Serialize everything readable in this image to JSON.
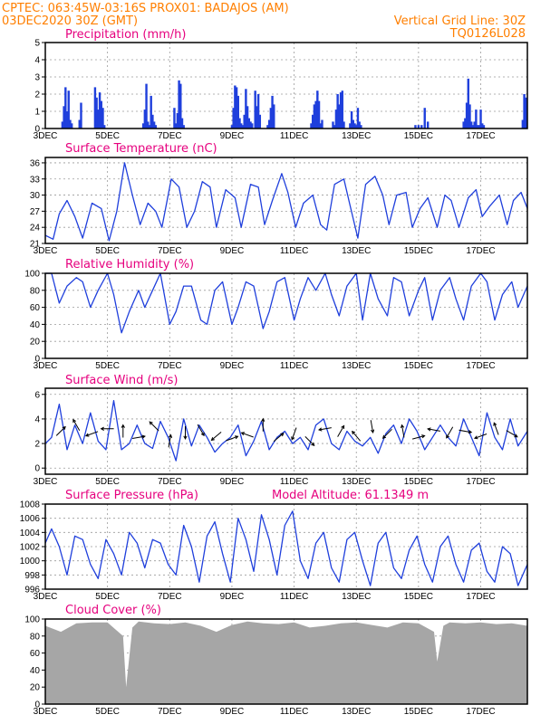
{
  "header": {
    "line1": "CPTEC:   063:45W-03:16S   PROX01: BADAJOS (AM)",
    "line2_left": "03DEC2020 30Z (GMT)",
    "line2_right": "Vertical Grid Line: 30Z",
    "line3_right": "TQ0126L028"
  },
  "colors": {
    "header": "#ff7f00",
    "panel_title": "#e6007e",
    "series": "#1f3fdc",
    "cloud": "#a6a6a6",
    "arrow": "#000000"
  },
  "x_axis": {
    "unit": "days from 03DEC 00Z",
    "range": [
      0,
      15.5
    ],
    "tick_positions": [
      0,
      2,
      4,
      6,
      8,
      10,
      12,
      14
    ],
    "tick_labels": [
      "3DEC",
      "5DEC",
      "7DEC",
      "9DEC",
      "11DEC",
      "13DEC",
      "15DEC",
      "17DEC"
    ]
  },
  "chart_data": [
    {
      "type": "bar",
      "panel": "precipitation",
      "title": "Precipitation (mm/h)",
      "ylim": [
        0,
        5
      ],
      "yticks": [
        0,
        1,
        2,
        3,
        4,
        5
      ],
      "grid": true,
      "x": [
        0.55,
        0.6,
        0.65,
        0.7,
        0.75,
        0.8,
        0.85,
        1.1,
        1.15,
        1.6,
        1.65,
        1.7,
        1.75,
        1.8,
        1.85,
        1.9,
        3.15,
        3.2,
        3.25,
        3.3,
        3.35,
        3.4,
        3.45,
        3.5,
        3.55,
        4.15,
        4.2,
        4.25,
        4.3,
        4.35,
        4.4,
        4.45,
        6.0,
        6.05,
        6.1,
        6.15,
        6.2,
        6.25,
        6.3,
        6.35,
        6.4,
        6.45,
        6.5,
        6.55,
        6.6,
        6.65,
        6.75,
        6.8,
        6.85,
        6.9,
        7.15,
        7.2,
        7.25,
        7.3,
        7.35,
        8.55,
        8.6,
        8.65,
        8.7,
        8.75,
        8.8,
        8.85,
        8.9,
        9.25,
        9.3,
        9.35,
        9.4,
        9.45,
        9.5,
        9.55,
        9.6,
        9.8,
        9.85,
        9.9,
        9.95,
        10.0,
        10.05,
        10.1,
        10.15,
        11.9,
        12.0,
        12.1,
        12.2,
        12.3,
        13.45,
        13.5,
        13.55,
        13.6,
        13.65,
        13.7,
        13.75,
        13.8,
        13.85,
        13.9,
        13.95,
        14.0,
        14.05,
        14.1,
        15.35,
        15.4,
        15.45
      ],
      "values": [
        0.4,
        1.3,
        2.4,
        1.0,
        2.2,
        0.5,
        0.3,
        0.5,
        1.5,
        2.4,
        1.8,
        1.1,
        2.1,
        1.6,
        1.2,
        0.2,
        0.3,
        1.1,
        2.6,
        0.4,
        0.2,
        1.9,
        0.8,
        0.4,
        0.2,
        1.2,
        0.3,
        0.9,
        2.8,
        2.6,
        0.6,
        0.2,
        0.2,
        1.2,
        2.5,
        2.4,
        1.9,
        0.6,
        0.3,
        0.2,
        0.8,
        2.3,
        1.3,
        0.6,
        0.4,
        0.3,
        2.2,
        1.3,
        2.0,
        0.8,
        0.2,
        0.5,
        1.2,
        1.9,
        1.4,
        0.3,
        0.8,
        1.4,
        1.6,
        2.2,
        1.6,
        0.3,
        0.5,
        0.4,
        0.2,
        1.1,
        2.0,
        1.4,
        2.1,
        2.2,
        0.4,
        0.3,
        1.0,
        0.5,
        0.3,
        0.2,
        1.2,
        0.4,
        0.2,
        0.2,
        0.2,
        0.2,
        1.2,
        0.4,
        0.4,
        0.6,
        1.5,
        2.9,
        1.4,
        0.4,
        0.2,
        0.4,
        1.1,
        0.2,
        0.2,
        1.1,
        0.3,
        0.2,
        0.5,
        2.0,
        1.8
      ]
    },
    {
      "type": "line",
      "panel": "temperature",
      "title": "Surface Temperature (nC)",
      "ylim": [
        21,
        37
      ],
      "yticks": [
        21,
        24,
        27,
        30,
        33,
        36
      ],
      "grid": true,
      "x": [
        0.0,
        0.25,
        0.45,
        0.7,
        0.95,
        1.2,
        1.5,
        1.8,
        2.05,
        2.3,
        2.55,
        2.8,
        3.05,
        3.3,
        3.55,
        3.75,
        4.05,
        4.3,
        4.55,
        4.8,
        5.05,
        5.3,
        5.5,
        5.8,
        6.1,
        6.3,
        6.6,
        6.85,
        7.05,
        7.3,
        7.6,
        7.8,
        8.05,
        8.3,
        8.6,
        8.85,
        9.05,
        9.3,
        9.6,
        9.8,
        10.05,
        10.3,
        10.6,
        10.85,
        11.05,
        11.3,
        11.6,
        11.8,
        12.05,
        12.3,
        12.6,
        12.85,
        13.05,
        13.3,
        13.6,
        13.85,
        14.05,
        14.3,
        14.6,
        14.85,
        15.05,
        15.3,
        15.5
      ],
      "values": [
        22.5,
        21.8,
        26.5,
        29.0,
        26.0,
        22.0,
        28.5,
        27.5,
        21.5,
        27.0,
        36.0,
        30.0,
        24.5,
        28.5,
        27.0,
        24.0,
        33.0,
        31.5,
        24.0,
        27.0,
        32.5,
        31.5,
        24.0,
        31.0,
        29.5,
        24.0,
        32.0,
        31.5,
        24.5,
        29.0,
        34.0,
        30.5,
        24.0,
        28.5,
        30.0,
        24.5,
        23.5,
        32.0,
        33.0,
        28.0,
        22.0,
        32.0,
        33.5,
        30.0,
        24.5,
        30.0,
        30.5,
        24.0,
        27.5,
        29.5,
        24.0,
        30.0,
        29.0,
        24.0,
        29.5,
        31.0,
        26.0,
        28.0,
        30.0,
        24.5,
        29.0,
        30.5,
        27.5
      ]
    },
    {
      "type": "line",
      "panel": "humidity",
      "title": "Relative Humidity (%)",
      "ylim": [
        0,
        100
      ],
      "yticks": [
        0,
        20,
        40,
        60,
        80,
        100
      ],
      "grid": true,
      "x": [
        0.0,
        0.2,
        0.45,
        0.7,
        1.0,
        1.2,
        1.45,
        1.7,
        2.0,
        2.2,
        2.45,
        2.7,
        3.0,
        3.2,
        3.45,
        3.7,
        4.0,
        4.2,
        4.45,
        4.7,
        5.0,
        5.2,
        5.45,
        5.7,
        6.0,
        6.2,
        6.45,
        6.7,
        7.0,
        7.2,
        7.45,
        7.7,
        8.0,
        8.2,
        8.45,
        8.7,
        9.0,
        9.2,
        9.45,
        9.7,
        10.0,
        10.2,
        10.45,
        10.7,
        11.0,
        11.2,
        11.45,
        11.7,
        12.0,
        12.2,
        12.45,
        12.7,
        13.0,
        13.2,
        13.45,
        13.7,
        14.0,
        14.2,
        14.45,
        14.7,
        15.0,
        15.2,
        15.5
      ],
      "values": [
        100.0,
        100.0,
        65.0,
        85.0,
        95.0,
        90.0,
        60.0,
        80.0,
        100.0,
        75.0,
        30.0,
        55.0,
        80.0,
        60.0,
        80.0,
        100.0,
        40.0,
        55.0,
        85.0,
        85.0,
        45.0,
        40.0,
        80.0,
        90.0,
        40.0,
        60.0,
        90.0,
        85.0,
        35.0,
        55.0,
        90.0,
        95.0,
        45.0,
        70.0,
        95.0,
        80.0,
        100.0,
        75.0,
        50.0,
        85.0,
        100.0,
        45.0,
        100.0,
        70.0,
        50.0,
        95.0,
        90.0,
        50.0,
        80.0,
        95.0,
        45.0,
        80.0,
        95.0,
        70.0,
        45.0,
        85.0,
        100.0,
        90.0,
        45.0,
        75.0,
        90.0,
        60.0,
        85.0
      ]
    },
    {
      "type": "line",
      "panel": "wind",
      "title": "Surface Wind (m/s)",
      "ylim": [
        -0.5,
        6.5
      ],
      "yticks": [
        0,
        2,
        4,
        6
      ],
      "grid": true,
      "x": [
        0.0,
        0.2,
        0.45,
        0.7,
        0.95,
        1.2,
        1.45,
        1.7,
        1.95,
        2.2,
        2.45,
        2.7,
        2.95,
        3.2,
        3.45,
        3.7,
        3.95,
        4.2,
        4.45,
        4.7,
        4.95,
        5.2,
        5.45,
        5.7,
        5.95,
        6.2,
        6.45,
        6.7,
        6.95,
        7.2,
        7.45,
        7.7,
        7.95,
        8.2,
        8.45,
        8.7,
        8.95,
        9.2,
        9.45,
        9.7,
        9.95,
        10.2,
        10.45,
        10.7,
        10.95,
        11.2,
        11.45,
        11.7,
        11.95,
        12.2,
        12.45,
        12.7,
        12.95,
        13.2,
        13.45,
        13.7,
        13.95,
        14.2,
        14.45,
        14.7,
        14.95,
        15.2,
        15.5
      ],
      "values": [
        2.0,
        2.5,
        5.2,
        1.5,
        3.5,
        2.0,
        4.5,
        2.2,
        1.5,
        5.5,
        1.5,
        2.0,
        3.5,
        2.0,
        1.6,
        3.8,
        2.5,
        0.6,
        4.0,
        1.8,
        3.5,
        2.5,
        1.3,
        2.0,
        2.5,
        3.5,
        1.0,
        2.2,
        3.8,
        1.5,
        2.5,
        3.0,
        2.0,
        2.5,
        1.5,
        3.5,
        4.0,
        2.0,
        1.5,
        3.0,
        2.2,
        1.8,
        2.5,
        1.2,
        2.8,
        3.5,
        2.0,
        4.0,
        3.0,
        1.5,
        2.5,
        3.5,
        2.5,
        1.8,
        4.0,
        2.5,
        1.0,
        4.5,
        2.5,
        1.5,
        4.0,
        1.8,
        3.0
      ],
      "arrows": {
        "x": [
          0.5,
          1.0,
          1.5,
          2.0,
          2.5,
          3.0,
          3.5,
          4.0,
          4.5,
          5.0,
          5.5,
          6.0,
          6.5,
          7.0,
          7.5,
          8.0,
          8.5,
          9.0,
          9.5,
          10.0,
          10.5,
          11.0,
          11.5,
          12.0,
          12.5,
          13.0,
          13.5,
          14.0,
          14.5,
          15.0
        ],
        "y": [
          3.0,
          3.5,
          2.8,
          3.2,
          3.0,
          2.5,
          3.4,
          2.2,
          2.9,
          3.1,
          2.6,
          2.4,
          2.7,
          3.5,
          2.5,
          2.8,
          2.2,
          3.2,
          3.0,
          2.6,
          3.4,
          2.8,
          3.0,
          2.5,
          3.1,
          2.9,
          3.0,
          2.6,
          3.2,
          2.8
        ],
        "dir_deg": [
          45,
          120,
          200,
          180,
          90,
          10,
          135,
          80,
          270,
          300,
          220,
          20,
          160,
          90,
          40,
          250,
          315,
          190,
          60,
          130,
          280,
          225,
          100,
          15,
          170,
          240,
          350,
          200,
          110,
          330
        ]
      }
    },
    {
      "type": "line",
      "panel": "pressure",
      "title": "Surface Pressure (hPa)",
      "annotation": "Model Altitude: 61.1349 m",
      "ylim": [
        996,
        1008
      ],
      "yticks": [
        996,
        998,
        1000,
        1002,
        1004,
        1006,
        1008
      ],
      "grid": true,
      "x": [
        0.0,
        0.2,
        0.45,
        0.7,
        0.95,
        1.2,
        1.45,
        1.7,
        1.95,
        2.2,
        2.45,
        2.7,
        2.95,
        3.2,
        3.45,
        3.7,
        3.95,
        4.2,
        4.45,
        4.7,
        4.95,
        5.2,
        5.45,
        5.7,
        5.95,
        6.2,
        6.45,
        6.7,
        6.95,
        7.2,
        7.45,
        7.7,
        7.95,
        8.2,
        8.45,
        8.7,
        8.95,
        9.2,
        9.45,
        9.7,
        9.95,
        10.2,
        10.45,
        10.7,
        10.95,
        11.2,
        11.45,
        11.7,
        11.95,
        12.2,
        12.45,
        12.7,
        12.95,
        13.2,
        13.45,
        13.7,
        13.95,
        14.2,
        14.45,
        14.7,
        14.95,
        15.2,
        15.5
      ],
      "values": [
        1002.5,
        1004.5,
        1002.0,
        998.0,
        1003.5,
        1003.0,
        999.5,
        997.5,
        1003.0,
        1001.0,
        998.0,
        1004.0,
        1002.5,
        999.0,
        1003.0,
        1002.5,
        999.5,
        998.0,
        1005.0,
        1002.0,
        997.0,
        1003.5,
        1005.5,
        1001.0,
        997.0,
        1006.0,
        1003.0,
        998.5,
        1006.5,
        1003.0,
        998.0,
        1005.0,
        1007.0,
        1000.0,
        997.5,
        1002.5,
        1004.0,
        999.0,
        997.0,
        1003.0,
        1004.0,
        1000.0,
        996.5,
        1002.5,
        1004.0,
        999.0,
        997.5,
        1001.5,
        1003.5,
        999.5,
        997.0,
        1002.0,
        1003.5,
        999.5,
        997.0,
        1001.5,
        1002.5,
        998.5,
        997.0,
        1002.0,
        1001.0,
        996.5,
        999.5
      ]
    },
    {
      "type": "area",
      "panel": "cloud",
      "title": "Cloud Cover (%)",
      "ylim": [
        0,
        100
      ],
      "yticks": [
        0,
        20,
        40,
        60,
        80,
        100
      ],
      "grid": true,
      "x": [
        0.0,
        0.5,
        1.0,
        1.5,
        2.0,
        2.5,
        2.6,
        2.8,
        3.0,
        3.5,
        4.0,
        4.5,
        5.0,
        5.5,
        6.0,
        6.5,
        7.0,
        7.5,
        8.0,
        8.5,
        9.0,
        9.5,
        10.0,
        10.5,
        11.0,
        11.5,
        12.0,
        12.5,
        12.6,
        12.8,
        13.0,
        13.5,
        14.0,
        14.5,
        15.0,
        15.5
      ],
      "values": [
        92.0,
        85.0,
        95.0,
        96.0,
        96.0,
        80.0,
        20.0,
        90.0,
        97.0,
        95.0,
        94.0,
        96.0,
        92.0,
        85.0,
        93.0,
        97.0,
        95.0,
        94.0,
        96.0,
        90.0,
        92.0,
        95.0,
        96.0,
        93.0,
        90.0,
        96.0,
        95.0,
        85.0,
        50.0,
        92.0,
        96.0,
        95.0,
        96.0,
        94.0,
        95.0,
        92.0
      ]
    }
  ]
}
